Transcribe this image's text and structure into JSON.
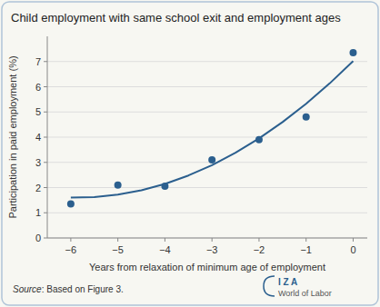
{
  "chart_data": {
    "type": "scatter",
    "title": "Child employment with same school exit and employment ages",
    "x_label": "Years from relaxation of minimum age of employment",
    "y_label": "Participation in paid employment (%)",
    "series": [
      {
        "type": "line",
        "color": "#2b5f8e",
        "x": [
          -6,
          -5.5,
          -5,
          -4.5,
          -4,
          -3.5,
          -3,
          -2.5,
          -2,
          -1.5,
          -1,
          -0.5,
          0
        ],
        "values": [
          1.605,
          1.622,
          1.718,
          1.893,
          2.146,
          2.479,
          2.89,
          3.381,
          3.95,
          4.598,
          5.325,
          6.131,
          7.015
        ]
      },
      {
        "type": "scatter",
        "color": "#2b5f8e",
        "x": [
          -6,
          -5,
          -4,
          -3,
          -2,
          -1,
          0
        ],
        "values": [
          1.35,
          2.1,
          2.05,
          3.1,
          3.9,
          4.8,
          7.35
        ]
      }
    ],
    "xlim": [
      -6.5,
      0.3
    ],
    "ylim": [
      0,
      8
    ],
    "xticks": [
      {
        "value": -6,
        "label": "−6"
      },
      {
        "value": -5,
        "label": "−5"
      },
      {
        "value": -4,
        "label": "−4"
      },
      {
        "value": -3,
        "label": "−3"
      },
      {
        "value": -2,
        "label": "−2"
      },
      {
        "value": -1,
        "label": "−1"
      },
      0
    ],
    "yticks": [
      0,
      1,
      2,
      3,
      4,
      5,
      6,
      7
    ],
    "grid": "y",
    "annotations": [
      "Source",
      ": Based on Figure 3.",
      "I Z A",
      "World of Labor"
    ],
    "color": "#2b5f8e"
  }
}
